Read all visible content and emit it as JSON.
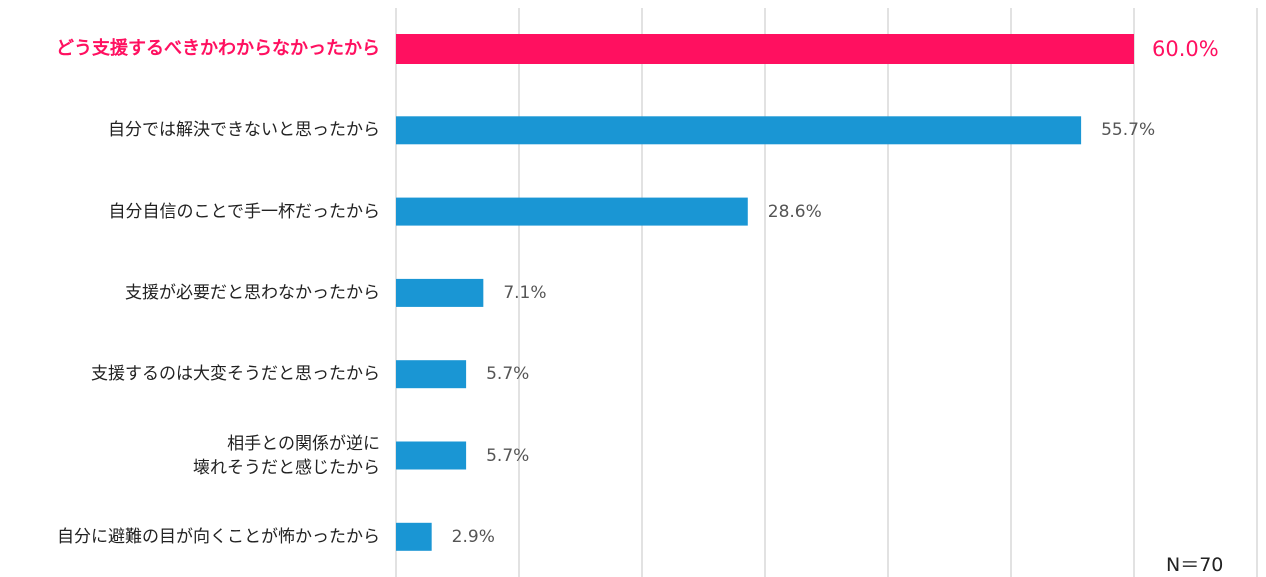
{
  "chart_data": {
    "type": "hbar",
    "categories": [
      "どう支援するべきかわからなかったから",
      "自分では解決できないと思ったから",
      "自分自信のことで手一杯だったから",
      "支援が必要だと思わなかったから",
      "支援するのは大変そうだと思ったから",
      "相手との関係が逆に\n壊れそうだと感じたから",
      "自分に避難の目が向くことが怖かったから"
    ],
    "values": [
      60.0,
      55.7,
      28.6,
      7.1,
      5.7,
      5.7,
      2.9
    ],
    "value_labels": [
      "60.0%",
      "55.7%",
      "28.6%",
      "7.1%",
      "5.7%",
      "5.7%",
      "2.9%"
    ],
    "colors": [
      "#ff1060",
      "#1a96d4",
      "#1a96d4",
      "#1a96d4",
      "#1a96d4",
      "#1a96d4",
      "#1a96d4"
    ],
    "xlim": [
      0,
      70
    ],
    "xticks": [
      0,
      10,
      20,
      30,
      40,
      50,
      60,
      70
    ],
    "grid": true,
    "note": "N＝70"
  }
}
